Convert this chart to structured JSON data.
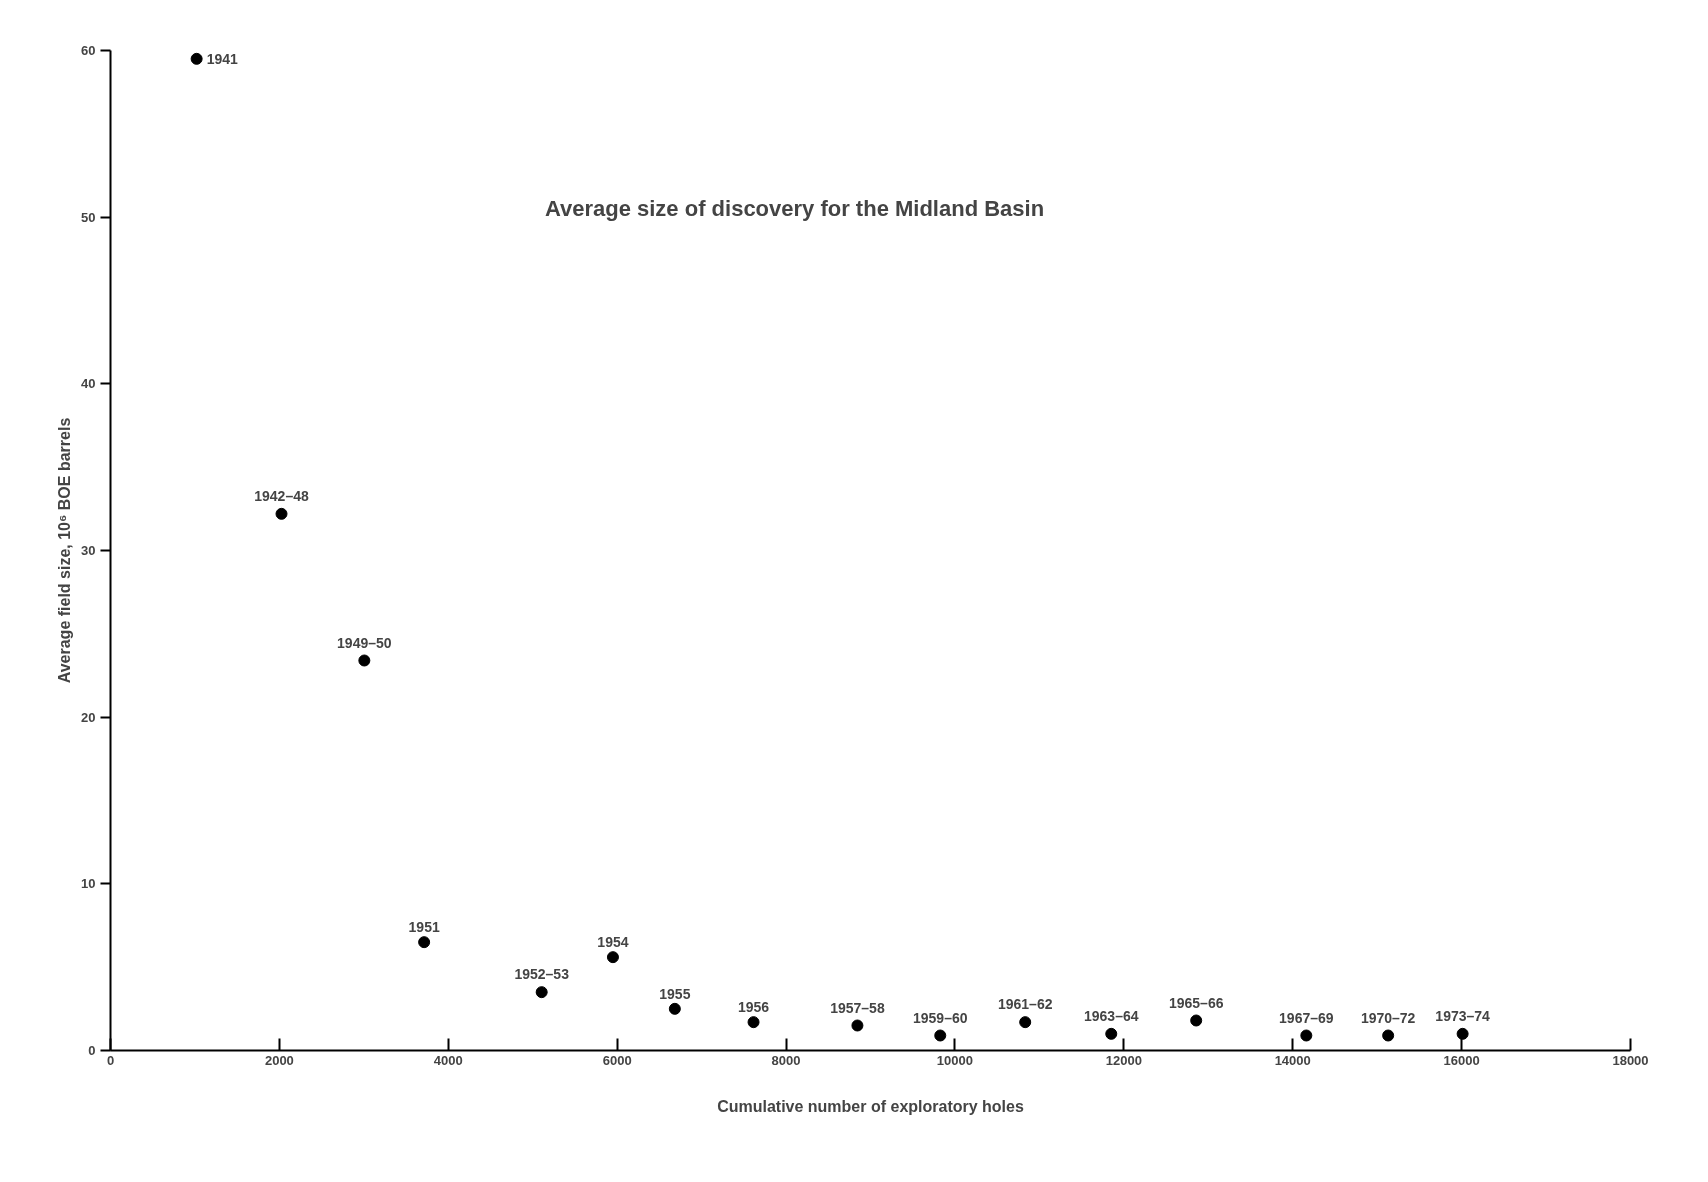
{
  "chart_data": {
    "type": "scatter",
    "title": "Average size of discovery for the Midland Basin",
    "xlabel": "Cumulative number of exploratory holes",
    "ylabel": "Average field size, 10⁶ BOE barrels",
    "x": [
      1020,
      2025,
      3006,
      3714,
      5106,
      5950,
      6683,
      7615,
      8845,
      9826,
      10832,
      11851,
      12857,
      14161,
      15130,
      16012
    ],
    "values": [
      59.5,
      32.2,
      23.4,
      6.5,
      3.5,
      5.6,
      2.5,
      1.7,
      1.5,
      0.9,
      1.7,
      1.0,
      1.8,
      0.9,
      0.9,
      1.0
    ],
    "annotations": [
      {
        "text": "1941",
        "x": 1020,
        "y": 59.5
      },
      {
        "text": "1942–48",
        "x": 2025,
        "y": 32.2
      },
      {
        "text": "1949–50",
        "x": 3006,
        "y": 23.4
      },
      {
        "text": "1951",
        "x": 3714,
        "y": 6.5
      },
      {
        "text": "1952–53",
        "x": 5106,
        "y": 3.5
      },
      {
        "text": "1954",
        "x": 5950,
        "y": 5.6
      },
      {
        "text": "1955",
        "x": 6683,
        "y": 2.5
      },
      {
        "text": "1956",
        "x": 7615,
        "y": 1.7
      },
      {
        "text": "1957–58",
        "x": 8845,
        "y": 1.5
      },
      {
        "text": "1959–60",
        "x": 9826,
        "y": 0.9
      },
      {
        "text": "1961–62",
        "x": 10832,
        "y": 1.7
      },
      {
        "text": "1963–64",
        "x": 11851,
        "y": 1.0
      },
      {
        "text": "1965–66",
        "x": 12857,
        "y": 1.8
      },
      {
        "text": "1967–69",
        "x": 14161,
        "y": 0.9
      },
      {
        "text": "1970–72",
        "x": 15130,
        "y": 0.9
      },
      {
        "text": "1973–74",
        "x": 16012,
        "y": 1.0
      }
    ],
    "color": "#000000",
    "marker": "circle",
    "grid": false,
    "xlim": [
      0,
      18000
    ],
    "xticks": [
      0,
      2000,
      4000,
      6000,
      8000,
      10000,
      12000,
      14000,
      16000,
      18000
    ],
    "ylim": [
      0,
      60
    ],
    "yticks": [
      0,
      10,
      20,
      30,
      40,
      50,
      60
    ]
  }
}
